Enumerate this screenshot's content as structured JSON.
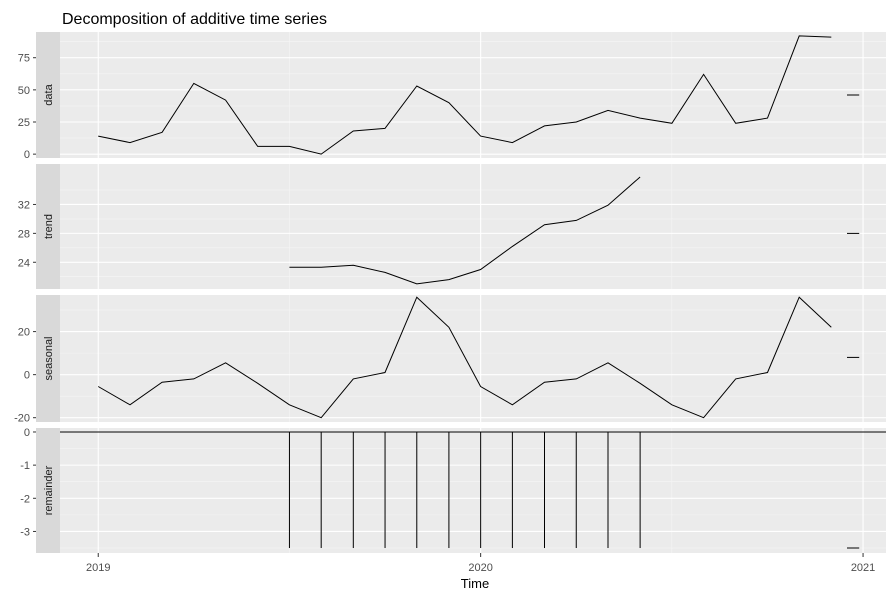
{
  "chart_data": {
    "type": "line",
    "title": "Decomposition of additive time series",
    "xlabel": "Time",
    "x_ticks": [
      {
        "value": 2019,
        "label": "2019"
      },
      {
        "value": 2020,
        "label": "2020"
      },
      {
        "value": 2021,
        "label": "2021"
      }
    ],
    "xlim": [
      2018.9,
      2021.06
    ],
    "facets": [
      {
        "name": "data",
        "ylim": [
          -3,
          95
        ],
        "y_ticks": [
          {
            "value": 0,
            "label": "0"
          },
          {
            "value": 25,
            "label": "25"
          },
          {
            "value": 50,
            "label": "50"
          },
          {
            "value": 75,
            "label": "75"
          }
        ],
        "series": [
          {
            "x": [
              2019.0,
              2019.083,
              2019.167,
              2019.25,
              2019.333,
              2019.417,
              2019.5,
              2019.583,
              2019.667,
              2019.75,
              2019.833,
              2019.917,
              2020.0,
              2020.083,
              2020.167,
              2020.25,
              2020.333,
              2020.417,
              2020.5,
              2020.583,
              2020.667,
              2020.75,
              2020.833,
              2020.917
            ],
            "y": [
              14,
              9,
              17,
              55,
              42,
              6,
              6,
              0,
              18,
              20,
              53,
              40,
              14,
              9,
              22,
              25,
              34,
              28,
              24,
              62,
              24,
              28,
              92,
              91
            ]
          },
          {
            "x": [
              2020.958,
              2020.99
            ],
            "y": [
              46,
              46
            ]
          }
        ]
      },
      {
        "name": "trend",
        "ylim": [
          20.3,
          37.6
        ],
        "y_ticks": [
          {
            "value": 24,
            "label": "24"
          },
          {
            "value": 28,
            "label": "28"
          },
          {
            "value": 32,
            "label": "32"
          }
        ],
        "series": [
          {
            "x": [
              2019.5,
              2019.583,
              2019.667,
              2019.75,
              2019.833,
              2019.917,
              2020.0,
              2020.083,
              2020.167,
              2020.25,
              2020.333,
              2020.417
            ],
            "y": [
              23.3,
              23.3,
              23.6,
              22.6,
              21.0,
              21.6,
              23.0,
              26.2,
              29.2,
              29.8,
              31.9,
              35.8
            ]
          },
          {
            "x": [
              2020.958,
              2020.99
            ],
            "y": [
              28,
              28
            ]
          }
        ]
      },
      {
        "name": "seasonal",
        "ylim": [
          -22,
          37
        ],
        "y_ticks": [
          {
            "value": -20,
            "label": "-20"
          },
          {
            "value": 0,
            "label": "0"
          },
          {
            "value": 20,
            "label": "20"
          }
        ],
        "series": [
          {
            "x": [
              2019.0,
              2019.083,
              2019.167,
              2019.25,
              2019.333,
              2019.417,
              2019.5,
              2019.583,
              2019.667,
              2019.75,
              2019.833,
              2019.917,
              2020.0,
              2020.083,
              2020.167,
              2020.25,
              2020.333,
              2020.417,
              2020.5,
              2020.583,
              2020.667,
              2020.75,
              2020.833,
              2020.917
            ],
            "y": [
              -5.5,
              -14,
              -3.5,
              -2,
              5.5,
              -4,
              -14,
              -20,
              -2,
              1,
              36,
              22,
              -5.5,
              -14,
              -3.5,
              -2,
              5.5,
              -4,
              -14,
              -20,
              -2,
              1,
              36,
              22
            ]
          },
          {
            "x": [
              2020.958,
              2020.99
            ],
            "y": [
              8,
              8
            ]
          }
        ]
      },
      {
        "name": "remainder",
        "ylim": [
          -3.65,
          0.12
        ],
        "y_ticks": [
          {
            "value": -3,
            "label": "-3"
          },
          {
            "value": -2,
            "label": "-2"
          },
          {
            "value": -1,
            "label": "-1"
          },
          {
            "value": 0,
            "label": "0"
          }
        ],
        "baseline": 0,
        "bars": {
          "x": [
            2019.5,
            2019.583,
            2019.667,
            2019.75,
            2019.833,
            2019.917,
            2020.0,
            2020.083,
            2020.167,
            2020.25,
            2020.333,
            2020.417
          ],
          "y": [
            -3.5,
            -3.5,
            -3.5,
            -3.5,
            -3.5,
            -3.5,
            -3.5,
            -3.5,
            -3.5,
            -3.5,
            -3.5,
            -3.5
          ]
        },
        "series": [
          {
            "x": [
              2020.958,
              2020.99
            ],
            "y": [
              -3.5,
              -3.5
            ]
          }
        ]
      }
    ]
  }
}
